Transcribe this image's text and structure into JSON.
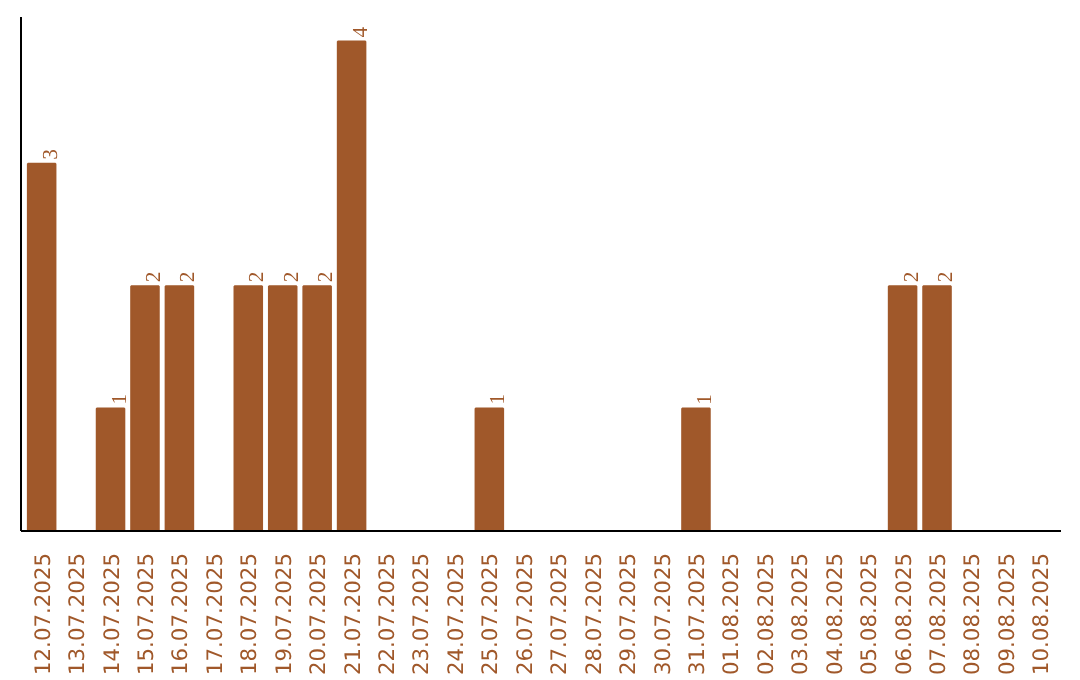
{
  "chart_data": {
    "type": "bar",
    "categories": [
      "12.07.2025",
      "13.07.2025",
      "14.07.2025",
      "15.07.2025",
      "16.07.2025",
      "17.07.2025",
      "18.07.2025",
      "19.07.2025",
      "20.07.2025",
      "21.07.2025",
      "22.07.2025",
      "23.07.2025",
      "24.07.2025",
      "25.07.2025",
      "26.07.2025",
      "27.07.2025",
      "28.07.2025",
      "29.07.2025",
      "30.07.2025",
      "31.07.2025",
      "01.08.2025",
      "02.08.2025",
      "03.08.2025",
      "04.08.2025",
      "05.08.2025",
      "06.08.2025",
      "07.08.2025",
      "08.08.2025",
      "09.08.2025",
      "10.08.2025"
    ],
    "values": [
      3,
      0,
      1,
      2,
      2,
      0,
      2,
      2,
      2,
      4,
      0,
      0,
      0,
      1,
      0,
      0,
      0,
      0,
      0,
      1,
      0,
      0,
      0,
      0,
      0,
      2,
      2,
      0,
      0,
      0
    ],
    "value_labels": [
      "3",
      null,
      "1",
      "2",
      "2",
      null,
      "2",
      "2",
      "2",
      "4",
      null,
      null,
      null,
      "1",
      null,
      null,
      null,
      null,
      null,
      "1",
      null,
      null,
      null,
      null,
      null,
      "2",
      "2",
      null,
      null,
      null
    ],
    "color": "#a0582a",
    "grid": false,
    "tick_labels": "x"
  }
}
